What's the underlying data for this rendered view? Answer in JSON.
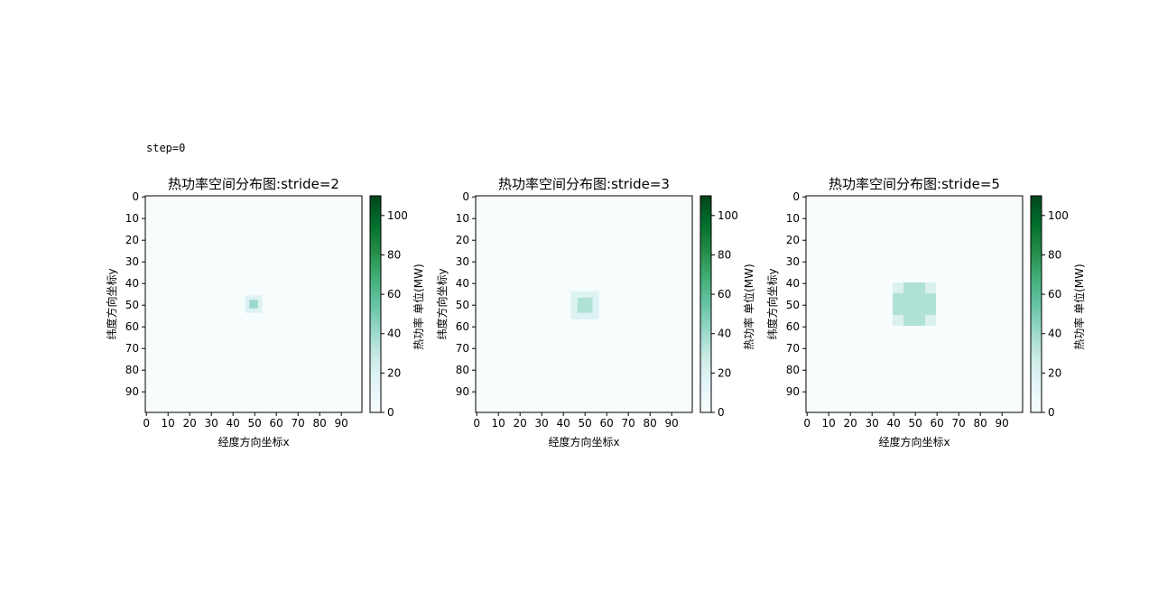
{
  "figure": {
    "suptitle": "step=0"
  },
  "chart_data": [
    {
      "type": "heatmap",
      "title": "热功率空间分布图:stride=2",
      "xlabel": "经度方向坐标x",
      "ylabel": "纬度方向坐标y",
      "colorbar_label": "热功率 单位(MW)",
      "colormap": "BuGn",
      "grid_size": [
        100,
        100
      ],
      "background_value": 0,
      "vmin": 0,
      "vmax": 110,
      "x_ticks": [
        "0",
        "10",
        "20",
        "30",
        "40",
        "50",
        "60",
        "70",
        "80",
        "90"
      ],
      "y_ticks": [
        "0",
        "10",
        "20",
        "30",
        "40",
        "50",
        "60",
        "70",
        "80",
        "90"
      ],
      "colorbar_ticks": [
        "0",
        "20",
        "40",
        "60",
        "80",
        "100"
      ],
      "patches": [
        {
          "x": [
            46,
            54
          ],
          "y": [
            46,
            54
          ],
          "value": 18
        },
        {
          "x": [
            48,
            52
          ],
          "y": [
            48,
            52
          ],
          "value": 40
        }
      ]
    },
    {
      "type": "heatmap",
      "title": "热功率空间分布图:stride=3",
      "xlabel": "经度方向坐标x",
      "ylabel": "纬度方向坐标y",
      "colorbar_label": "热功率 单位(MW)",
      "colormap": "BuGn",
      "grid_size": [
        100,
        100
      ],
      "background_value": 0,
      "vmin": 0,
      "vmax": 110,
      "x_ticks": [
        "0",
        "10",
        "20",
        "30",
        "40",
        "50",
        "60",
        "70",
        "80",
        "90"
      ],
      "y_ticks": [
        "0",
        "10",
        "20",
        "30",
        "40",
        "50",
        "60",
        "70",
        "80",
        "90"
      ],
      "colorbar_ticks": [
        "0",
        "20",
        "40",
        "60",
        "80",
        "100"
      ],
      "patches": [
        {
          "x": [
            44,
            57
          ],
          "y": [
            44,
            57
          ],
          "value": 18
        },
        {
          "x": [
            47,
            54
          ],
          "y": [
            47,
            54
          ],
          "value": 35
        }
      ]
    },
    {
      "type": "heatmap",
      "title": "热功率空间分布图:stride=5",
      "xlabel": "经度方向坐标x",
      "ylabel": "纬度方向坐标y",
      "colorbar_label": "热功率 单位(MW)",
      "colormap": "BuGn",
      "grid_size": [
        100,
        100
      ],
      "background_value": 0,
      "vmin": 0,
      "vmax": 110,
      "x_ticks": [
        "0",
        "10",
        "20",
        "30",
        "40",
        "50",
        "60",
        "70",
        "80",
        "90"
      ],
      "y_ticks": [
        "0",
        "10",
        "20",
        "30",
        "40",
        "50",
        "60",
        "70",
        "80",
        "90"
      ],
      "colorbar_ticks": [
        "0",
        "20",
        "40",
        "60",
        "80",
        "100"
      ],
      "patches": [
        {
          "x": [
            40,
            60
          ],
          "y": [
            40,
            60
          ],
          "value": 20
        },
        {
          "x": [
            45,
            55
          ],
          "y": [
            40,
            60
          ],
          "value": 35
        },
        {
          "x": [
            40,
            60
          ],
          "y": [
            45,
            55
          ],
          "value": 35
        },
        {
          "x": [
            45,
            55
          ],
          "y": [
            45,
            55
          ],
          "value": 35
        }
      ]
    }
  ]
}
